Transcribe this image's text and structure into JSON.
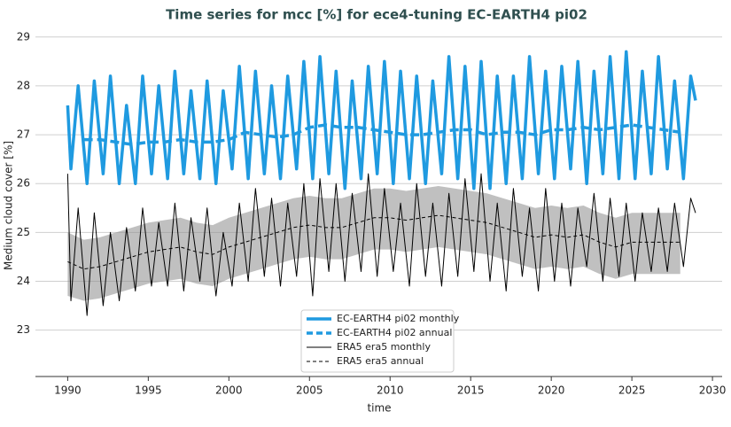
{
  "chart_data": {
    "type": "line",
    "title": "Time series for mcc [%] for ece4-tuning EC-EARTH4 pi02",
    "xlabel": "time",
    "ylabel": "Medium cloud cover [%]",
    "xlim": [
      1988,
      2030.6
    ],
    "ylim": [
      22.05,
      29.25
    ],
    "xticks": [
      1990,
      1995,
      2000,
      2005,
      2010,
      2015,
      2020,
      2025,
      2030
    ],
    "yticks": [
      23,
      24,
      25,
      26,
      27,
      28,
      29
    ],
    "grid": true,
    "legend": "lower center",
    "x": [
      1990,
      1990.2,
      1990.65,
      1991.2,
      1991.65,
      1992.2,
      1992.65,
      1993.2,
      1993.65,
      1994.2,
      1994.65,
      1995.2,
      1995.65,
      1996.2,
      1996.65,
      1997.2,
      1997.65,
      1998.2,
      1998.65,
      1999.2,
      1999.65,
      2000.2,
      2000.65,
      2001.2,
      2001.65,
      2002.2,
      2002.65,
      2003.2,
      2003.65,
      2004.2,
      2004.65,
      2005.2,
      2005.65,
      2006.2,
      2006.65,
      2007.2,
      2007.65,
      2008.2,
      2008.65,
      2009.2,
      2009.65,
      2010.2,
      2010.65,
      2011.2,
      2011.65,
      2012.2,
      2012.65,
      2013.2,
      2013.65,
      2014.2,
      2014.65,
      2015.2,
      2015.65,
      2016.2,
      2016.65,
      2017.2,
      2017.65,
      2018.2,
      2018.65,
      2019.2,
      2019.65,
      2020.2,
      2020.65,
      2021.2,
      2021.65,
      2022.2,
      2022.65,
      2023.2,
      2023.65,
      2024.2,
      2024.65,
      2025.2,
      2025.65,
      2026.2,
      2026.65,
      2027.2,
      2027.65,
      2028.2,
      2028.65,
      2028.95
    ],
    "bands": [
      {
        "color": "#8c8c8c",
        "x": [
          1990,
          1991,
          1992,
          1993,
          1994,
          1995,
          1996,
          1997,
          1998,
          1999,
          2000,
          2001,
          2002,
          2003,
          2004,
          2005,
          2006,
          2007,
          2008,
          2009,
          2010,
          2011,
          2012,
          2013,
          2014,
          2015,
          2016,
          2017,
          2018,
          2019,
          2020,
          2021,
          2022,
          2023,
          2024,
          2025,
          2026,
          2027,
          2028
        ],
        "lower": [
          23.7,
          23.6,
          23.65,
          23.75,
          23.85,
          23.95,
          24.0,
          24.05,
          23.95,
          23.9,
          24.05,
          24.15,
          24.25,
          24.35,
          24.45,
          24.5,
          24.45,
          24.45,
          24.55,
          24.65,
          24.65,
          24.6,
          24.65,
          24.7,
          24.65,
          24.6,
          24.55,
          24.45,
          24.35,
          24.25,
          24.3,
          24.25,
          24.3,
          24.15,
          24.05,
          24.15,
          24.15,
          24.15,
          24.15
        ],
        "upper": [
          25.0,
          24.85,
          24.9,
          25.0,
          25.1,
          25.2,
          25.25,
          25.3,
          25.2,
          25.15,
          25.3,
          25.4,
          25.5,
          25.6,
          25.7,
          25.75,
          25.7,
          25.7,
          25.8,
          25.9,
          25.9,
          25.85,
          25.9,
          25.95,
          25.9,
          25.85,
          25.8,
          25.7,
          25.6,
          25.5,
          25.55,
          25.5,
          25.55,
          25.4,
          25.3,
          25.4,
          25.4,
          25.4,
          25.4
        ]
      }
    ],
    "series": [
      {
        "name": "EC-EARTH4 pi02 monthly",
        "color": "#1f9ae0",
        "width": 3.5,
        "dash": false,
        "values": [
          27.6,
          26.3,
          28.0,
          26.0,
          28.1,
          26.2,
          28.2,
          26.0,
          27.6,
          26.0,
          28.2,
          26.2,
          28.0,
          26.1,
          28.3,
          26.2,
          27.9,
          26.1,
          28.1,
          26.0,
          27.9,
          26.3,
          28.4,
          26.1,
          28.3,
          26.2,
          28.0,
          26.1,
          28.2,
          26.3,
          28.5,
          26.1,
          28.6,
          26.2,
          28.3,
          25.9,
          28.1,
          26.1,
          28.4,
          26.2,
          28.5,
          26.0,
          28.3,
          26.1,
          28.2,
          26.0,
          28.1,
          26.2,
          28.6,
          26.1,
          28.4,
          25.9,
          28.5,
          25.9,
          28.2,
          26.0,
          28.2,
          26.1,
          28.6,
          26.2,
          28.3,
          26.1,
          28.4,
          26.3,
          28.5,
          26.0,
          28.3,
          26.2,
          28.6,
          26.1,
          28.7,
          26.1,
          28.3,
          26.2,
          28.6,
          26.3,
          28.1,
          26.1,
          28.2,
          27.7
        ]
      },
      {
        "name": "EC-EARTH4 pi02 annual",
        "color": "#1f9ae0",
        "width": 3.5,
        "dash": true,
        "x": [
          1991,
          1992,
          1993,
          1994,
          1995,
          1996,
          1997,
          1998,
          1999,
          2000,
          2001,
          2002,
          2003,
          2004,
          2005,
          2006,
          2007,
          2008,
          2009,
          2010,
          2011,
          2012,
          2013,
          2014,
          2015,
          2016,
          2017,
          2018,
          2019,
          2020,
          2021,
          2022,
          2023,
          2024,
          2025,
          2026,
          2027,
          2028
        ],
        "values": [
          26.9,
          26.9,
          26.85,
          26.8,
          26.85,
          26.85,
          26.9,
          26.85,
          26.85,
          26.9,
          27.05,
          27.0,
          26.95,
          27.0,
          27.15,
          27.2,
          27.15,
          27.15,
          27.1,
          27.05,
          27.0,
          27.0,
          27.05,
          27.1,
          27.1,
          27.0,
          27.05,
          27.05,
          27.0,
          27.1,
          27.1,
          27.15,
          27.1,
          27.15,
          27.2,
          27.15,
          27.1,
          27.05
        ]
      },
      {
        "name": "ERA5 era5 monthly",
        "color": "#000000",
        "width": 1,
        "dash": false,
        "values": [
          26.2,
          23.6,
          25.5,
          23.3,
          25.4,
          23.5,
          25.0,
          23.6,
          25.1,
          23.8,
          25.5,
          23.9,
          25.2,
          23.9,
          25.6,
          23.8,
          25.3,
          24.0,
          25.5,
          23.7,
          25.0,
          23.9,
          25.6,
          24.0,
          25.9,
          24.1,
          25.7,
          23.9,
          25.6,
          24.1,
          26.0,
          23.7,
          26.1,
          24.2,
          26.0,
          24.0,
          25.8,
          24.2,
          26.2,
          24.1,
          25.9,
          24.2,
          25.6,
          23.9,
          26.0,
          24.1,
          25.6,
          23.9,
          25.8,
          24.1,
          26.1,
          24.2,
          26.2,
          24.0,
          25.6,
          23.8,
          25.9,
          24.1,
          25.5,
          23.8,
          25.9,
          24.0,
          25.6,
          23.9,
          25.5,
          24.3,
          25.8,
          24.0,
          25.7,
          24.1,
          25.6,
          24.0,
          25.4,
          24.2,
          25.5,
          24.2,
          25.6,
          24.3,
          25.7,
          25.4
        ]
      },
      {
        "name": "ERA5 era5 annual",
        "color": "#000000",
        "width": 1,
        "dash": true,
        "x": [
          1990,
          1991,
          1992,
          1993,
          1994,
          1995,
          1996,
          1997,
          1998,
          1999,
          2000,
          2001,
          2002,
          2003,
          2004,
          2005,
          2006,
          2007,
          2008,
          2009,
          2010,
          2011,
          2012,
          2013,
          2014,
          2015,
          2016,
          2017,
          2018,
          2019,
          2020,
          2021,
          2022,
          2023,
          2024,
          2025,
          2026,
          2027,
          2028
        ],
        "values": [
          24.4,
          24.25,
          24.3,
          24.4,
          24.5,
          24.6,
          24.65,
          24.7,
          24.6,
          24.55,
          24.7,
          24.8,
          24.9,
          25.0,
          25.1,
          25.15,
          25.1,
          25.1,
          25.2,
          25.3,
          25.3,
          25.25,
          25.3,
          25.35,
          25.3,
          25.25,
          25.2,
          25.1,
          25.0,
          24.9,
          24.95,
          24.9,
          24.95,
          24.8,
          24.7,
          24.8,
          24.8,
          24.8,
          24.8
        ]
      }
    ]
  }
}
